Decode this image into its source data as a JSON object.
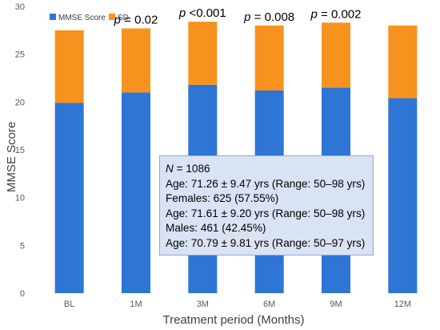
{
  "chart_data": {
    "type": "bar",
    "stacked": true,
    "categories": [
      "BL",
      "1M",
      "3M",
      "6M",
      "9M",
      "12M"
    ],
    "series": [
      {
        "name": "MMSE Score",
        "color": "#2e75d6",
        "values": [
          19.9,
          21.0,
          21.8,
          21.2,
          21.5,
          20.4
        ]
      },
      {
        "name": "SD",
        "color": "#f7921e",
        "values": [
          7.6,
          6.7,
          6.6,
          6.8,
          6.8,
          7.6
        ]
      }
    ],
    "p_values": [
      {
        "category": "1M",
        "prefix": "p",
        "text": " = 0.02"
      },
      {
        "category": "3M",
        "prefix": "p",
        "text": " <0.001"
      },
      {
        "category": "6M",
        "prefix": "p",
        "text": " = 0.008"
      },
      {
        "category": "9M",
        "prefix": "p",
        "text": " = 0.002"
      }
    ],
    "xlabel": "Treatment period (Months)",
    "ylabel": "MMSE Score",
    "ylim": [
      0,
      30
    ],
    "yticks": [
      0,
      5,
      10,
      15,
      20,
      25,
      30
    ],
    "grid": false,
    "legend_position": "top-left"
  },
  "info_box": {
    "n_label": "N",
    "n_value": " = 1086",
    "age_all": "Age: 71.26 ± 9.47 yrs (Range: 50–98 yrs)",
    "females": "Females: 625 (57.55%)",
    "age_females": "Age: 71.61 ± 9.20 yrs (Range: 50–98 yrs)",
    "males": "Males: 461 (42.45%)",
    "age_males": "Age: 70.79 ± 9.81 yrs (Range: 50–97 yrs)"
  }
}
